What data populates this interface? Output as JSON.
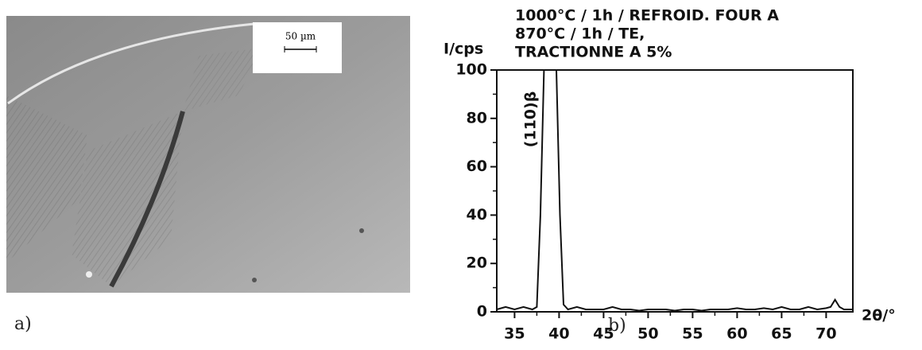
{
  "panel_labels": [
    "a)",
    "b)"
  ],
  "scale_bar_label": "50 µm",
  "chart_data": {
    "type": "line",
    "title_lines": [
      "1000°C / 1h / REFROID. FOUR A",
      "870°C / 1h / TE,",
      "TRACTIONNE A 5%"
    ],
    "y_label": "I/cps",
    "x_label": "2θ/°",
    "annotation": "(110)β",
    "color": "#111111",
    "x": [
      33,
      34,
      35,
      36,
      37,
      37.5,
      37.9,
      38.3,
      39.7,
      40.1,
      40.5,
      41,
      42,
      43,
      44,
      45,
      46,
      47,
      48,
      49,
      50,
      51,
      52,
      53,
      54,
      55,
      56,
      57,
      58,
      59,
      60,
      61,
      62,
      63,
      64,
      65,
      66,
      67,
      68,
      69,
      70,
      70.5,
      71,
      71.5,
      72,
      73
    ],
    "values": [
      1,
      2,
      1,
      2,
      1,
      2,
      40,
      100,
      100,
      40,
      3,
      1,
      2,
      1,
      1,
      1,
      2,
      1,
      1,
      0.5,
      1,
      1,
      1,
      0.5,
      1,
      1,
      0.5,
      1,
      1,
      1,
      1.5,
      1,
      1,
      1.5,
      1,
      2,
      1,
      1,
      2,
      1,
      1.5,
      2,
      5,
      2,
      1,
      1
    ],
    "xlim": [
      33,
      73
    ],
    "ylim": [
      0,
      100
    ],
    "xticks": [
      35,
      40,
      45,
      50,
      55,
      60,
      65,
      70
    ],
    "yticks": [
      0,
      20,
      40,
      60,
      80,
      100
    ]
  }
}
